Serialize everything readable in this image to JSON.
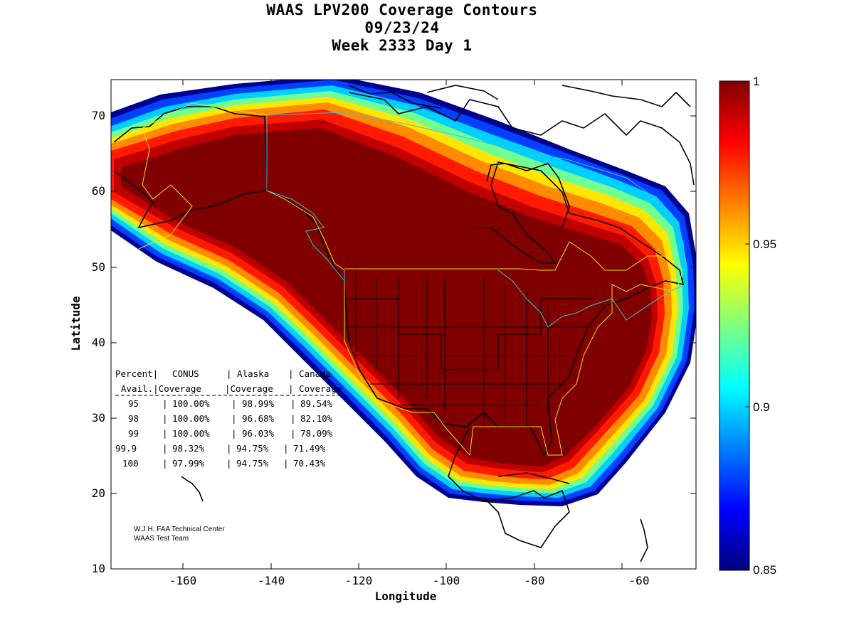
{
  "title": {
    "line1": "WAAS LPV200 Coverage Contours",
    "line2": "09/23/24",
    "line3": "Week 2333 Day 1"
  },
  "axes": {
    "xlabel": "Longitude",
    "ylabel": "Latitude",
    "x_ticks": [
      "-160",
      "-140",
      "-120",
      "-100",
      "-80",
      "-60"
    ],
    "y_ticks": [
      "70",
      "60",
      "50",
      "40",
      "30",
      "20",
      "10"
    ]
  },
  "colorbar": {
    "ticks": [
      "1",
      "0.95",
      "0.9",
      "0.85"
    ]
  },
  "stats_table": {
    "header1": [
      "Percent|",
      "CONUS",
      "| Alaska",
      "| Canada"
    ],
    "header2": [
      "Avail.|Coverage",
      "|Coverage",
      "| Coverage"
    ],
    "rows": [
      {
        "pct": "95",
        "conus": "100.00%",
        "alaska": "98.99%",
        "canada": "89.54%"
      },
      {
        "pct": "98",
        "conus": "100.00%",
        "alaska": "96.68%",
        "canada": "82.10%"
      },
      {
        "pct": "99",
        "conus": "100.00%",
        "alaska": "96.03%",
        "canada": "78.09%"
      },
      {
        "pct": "99.9",
        "conus": "98.32%",
        "alaska": "94.75%",
        "canada": "71.49%"
      },
      {
        "pct": "100",
        "conus": "97.99%",
        "alaska": "94.75%",
        "canada": "70.43%"
      }
    ]
  },
  "credit": {
    "line1": "W.J.H. FAA Technical Center",
    "line2": "WAAS Test Team"
  },
  "colors": {
    "max": "#800000",
    "red": "#ff0000",
    "orange": "#ff8000",
    "yellow": "#ffff00",
    "cyan": "#00ffff",
    "blue": "#0000ff",
    "min": "#000080",
    "region_outline_yellow": "#e6e600",
    "region_outline_cyan": "#40c0d0"
  }
}
